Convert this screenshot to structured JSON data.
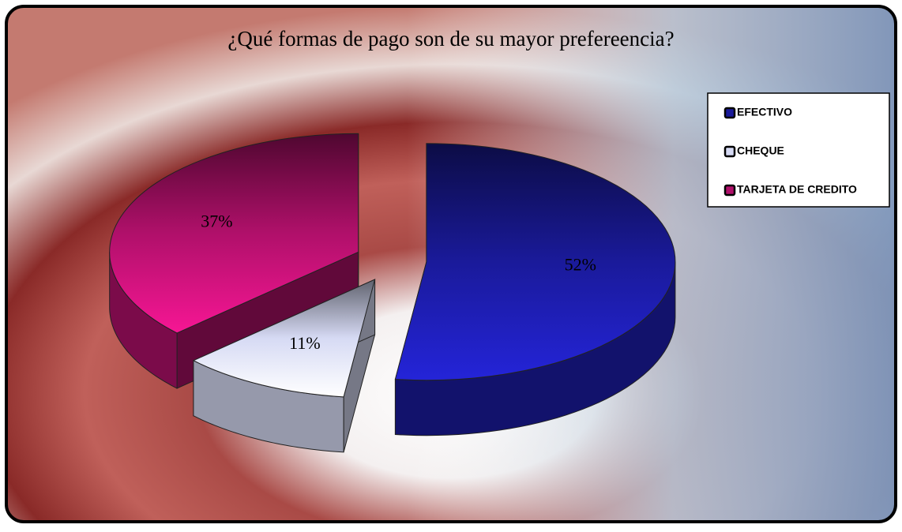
{
  "chart_data": {
    "type": "pie",
    "title": "¿Qué formas de pago son de su mayor prefereencia?",
    "categories": [
      "EFECTIVO",
      "CHEQUE",
      "TARJETA DE CREDITO"
    ],
    "values": [
      52,
      11,
      37
    ],
    "value_labels": [
      "52%",
      "11%",
      "37%"
    ],
    "colors": [
      "#1a1a9a",
      "#d6daf4",
      "#b0106a"
    ],
    "legend": "right"
  }
}
